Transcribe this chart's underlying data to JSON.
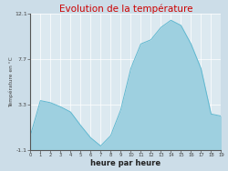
{
  "title": "Evolution de la température",
  "title_color": "#cc0000",
  "xlabel": "heure par heure",
  "ylabel": "Température en °C",
  "background_color": "#ccdde8",
  "plot_background": "#dce9f0",
  "fill_color": "#9ed0e0",
  "line_color": "#60b8d0",
  "ylim": [
    -1.1,
    12.1
  ],
  "yticks": [
    -1.1,
    3.3,
    7.7,
    12.1
  ],
  "ytick_labels": [
    "-1.1",
    "3.3",
    "7.7",
    "12.1"
  ],
  "hours": [
    0,
    1,
    2,
    3,
    4,
    5,
    6,
    7,
    8,
    9,
    10,
    11,
    12,
    13,
    14,
    15,
    16,
    17,
    18,
    19
  ],
  "temps": [
    0.3,
    3.7,
    3.5,
    3.1,
    2.6,
    1.3,
    0.1,
    -0.7,
    0.3,
    2.8,
    6.8,
    9.2,
    9.6,
    10.8,
    11.5,
    11.0,
    9.2,
    6.8,
    2.4,
    2.2
  ]
}
